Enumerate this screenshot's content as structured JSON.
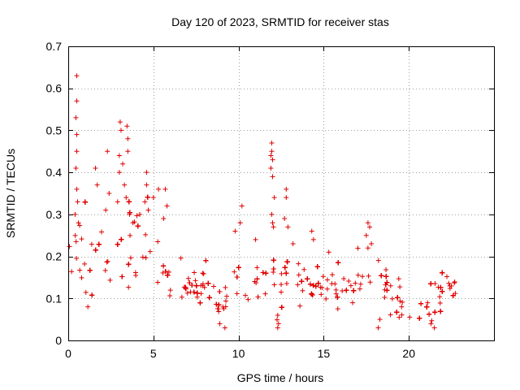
{
  "chart_data": {
    "type": "scatter",
    "title": "Day 120 of 2023, SRMTID for receiver stas",
    "xlabel": "GPS time / hours",
    "ylabel": "SRMTID / TECUs",
    "xlim": [
      0,
      25
    ],
    "ylim": [
      0,
      0.7
    ],
    "xticks": [
      0,
      5,
      10,
      15,
      20
    ],
    "yticks": [
      0,
      0.1,
      0.2,
      0.3,
      0.4,
      0.5,
      0.6,
      0.7
    ],
    "grid": true,
    "marker": "plus",
    "color": "#e00000",
    "envelope": [
      [
        0.0,
        0.19,
        0.05
      ],
      [
        0.5,
        0.21,
        0.07
      ],
      [
        1.0,
        0.17,
        0.06
      ],
      [
        1.5,
        0.19,
        0.06
      ],
      [
        2.0,
        0.18,
        0.06
      ],
      [
        2.5,
        0.2,
        0.07
      ],
      [
        3.0,
        0.21,
        0.08
      ],
      [
        3.5,
        0.22,
        0.08
      ],
      [
        4.0,
        0.21,
        0.07
      ],
      [
        4.5,
        0.2,
        0.07
      ],
      [
        5.0,
        0.19,
        0.06
      ],
      [
        5.5,
        0.2,
        0.06
      ],
      [
        6.0,
        0.14,
        0.05
      ],
      [
        6.5,
        0.12,
        0.04
      ],
      [
        7.0,
        0.11,
        0.04
      ],
      [
        7.5,
        0.11,
        0.04
      ],
      [
        8.0,
        0.13,
        0.04
      ],
      [
        8.5,
        0.09,
        0.03
      ],
      [
        9.0,
        0.09,
        0.03
      ],
      [
        9.5,
        0.1,
        0.03
      ],
      [
        10.0,
        0.13,
        0.04
      ],
      [
        10.5,
        0.12,
        0.04
      ],
      [
        11.0,
        0.14,
        0.04
      ],
      [
        11.5,
        0.13,
        0.04
      ],
      [
        12.0,
        0.15,
        0.05
      ],
      [
        12.5,
        0.12,
        0.04
      ],
      [
        13.0,
        0.15,
        0.05
      ],
      [
        13.5,
        0.13,
        0.04
      ],
      [
        14.0,
        0.12,
        0.04
      ],
      [
        14.5,
        0.14,
        0.04
      ],
      [
        15.0,
        0.12,
        0.04
      ],
      [
        15.5,
        0.12,
        0.04
      ],
      [
        16.0,
        0.11,
        0.04
      ],
      [
        16.5,
        0.11,
        0.04
      ],
      [
        17.0,
        0.12,
        0.04
      ],
      [
        17.5,
        0.15,
        0.05
      ],
      [
        18.0,
        0.12,
        0.04
      ],
      [
        18.5,
        0.11,
        0.04
      ],
      [
        19.0,
        0.11,
        0.04
      ],
      [
        19.5,
        0.1,
        0.03
      ],
      [
        20.0,
        0.09,
        0.03
      ],
      [
        20.5,
        0.08,
        0.03
      ],
      [
        21.0,
        0.08,
        0.03
      ],
      [
        21.5,
        0.07,
        0.03
      ],
      [
        22.0,
        0.12,
        0.04
      ],
      [
        22.5,
        0.12,
        0.04
      ],
      [
        22.8,
        0.11,
        0.03
      ]
    ],
    "outliers": [
      [
        0.5,
        0.63
      ],
      [
        0.5,
        0.57
      ],
      [
        0.45,
        0.53
      ],
      [
        0.5,
        0.49
      ],
      [
        0.5,
        0.45
      ],
      [
        0.45,
        0.41
      ],
      [
        0.5,
        0.36
      ],
      [
        0.55,
        0.33
      ],
      [
        0.4,
        0.3
      ],
      [
        0.6,
        0.28
      ],
      [
        2.3,
        0.45
      ],
      [
        1.6,
        0.41
      ],
      [
        1.7,
        0.37
      ],
      [
        2.4,
        0.35
      ],
      [
        2.2,
        0.31
      ],
      [
        3.05,
        0.52
      ],
      [
        3.45,
        0.51
      ],
      [
        3.1,
        0.5
      ],
      [
        3.5,
        0.48
      ],
      [
        3.5,
        0.45
      ],
      [
        3.0,
        0.44
      ],
      [
        3.2,
        0.42
      ],
      [
        3.0,
        0.4
      ],
      [
        3.3,
        0.37
      ],
      [
        3.4,
        0.34
      ],
      [
        2.9,
        0.33
      ],
      [
        3.6,
        0.3
      ],
      [
        4.6,
        0.4
      ],
      [
        4.6,
        0.37
      ],
      [
        4.5,
        0.33
      ],
      [
        4.7,
        0.31
      ],
      [
        5.3,
        0.36
      ],
      [
        5.0,
        0.34
      ],
      [
        5.7,
        0.36
      ],
      [
        5.8,
        0.32
      ],
      [
        5.6,
        0.29
      ],
      [
        4.2,
        0.3
      ],
      [
        3.8,
        0.28
      ],
      [
        1.0,
        0.33
      ],
      [
        11.95,
        0.47
      ],
      [
        11.95,
        0.45
      ],
      [
        11.9,
        0.44
      ],
      [
        12.0,
        0.43
      ],
      [
        11.9,
        0.41
      ],
      [
        12.0,
        0.39
      ],
      [
        12.1,
        0.34
      ],
      [
        11.95,
        0.3
      ],
      [
        12.0,
        0.28
      ],
      [
        12.05,
        0.27
      ],
      [
        12.8,
        0.36
      ],
      [
        12.8,
        0.34
      ],
      [
        12.7,
        0.29
      ],
      [
        12.9,
        0.27
      ],
      [
        10.2,
        0.32
      ],
      [
        10.1,
        0.28
      ],
      [
        9.8,
        0.26
      ],
      [
        11.0,
        0.24
      ],
      [
        13.2,
        0.23
      ],
      [
        14.3,
        0.26
      ],
      [
        14.4,
        0.24
      ],
      [
        15.3,
        0.21
      ],
      [
        17.6,
        0.28
      ],
      [
        17.7,
        0.27
      ],
      [
        17.5,
        0.25
      ],
      [
        17.8,
        0.23
      ],
      [
        17.6,
        0.22
      ],
      [
        12.3,
        0.06
      ],
      [
        12.35,
        0.04
      ],
      [
        12.3,
        0.03
      ],
      [
        18.3,
        0.05
      ],
      [
        18.2,
        0.03
      ],
      [
        21.5,
        0.03
      ],
      [
        21.3,
        0.04
      ],
      [
        9.2,
        0.03
      ],
      [
        8.9,
        0.04
      ]
    ]
  }
}
